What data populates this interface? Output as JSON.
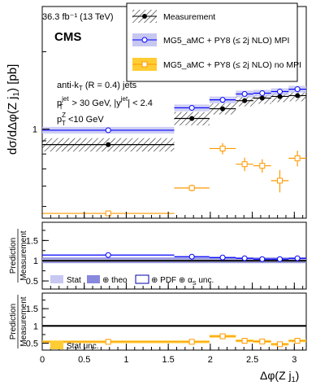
{
  "lumi": "36.3 fb⁻¹ (13 TeV)",
  "experiment": "CMS",
  "selection": {
    "line1": "anti-k",
    "line1_sub": "T",
    "line1_rest": " (R = 0.4) jets",
    "line2_p": "p",
    "line2_sup": "jet",
    "line2_sub": "T",
    "line2_mid": " > 30 GeV, |y",
    "line2_sup2": "jet",
    "line2_end": "| < 2.4",
    "line3_p": "p",
    "line3_sup": "Z",
    "line3_sub": "T",
    "line3_end": " <10 GeV"
  },
  "legend_main": [
    {
      "label": "Measurement"
    },
    {
      "label": "MG5_aMC + PY8 (≤ 2j NLO) MPI"
    },
    {
      "label": "MG5_aMC + PY8 (≤ 2j NLO) no MPI"
    }
  ],
  "legend_ratio1": {
    "stat": "Stat",
    "theo": "⊕ theo",
    "pdf": "⊕ PDF ⊕ α",
    "pdf_sub": "S",
    "unc": " unc."
  },
  "legend_ratio2": {
    "stat": "Stat unc."
  },
  "ylabel_top": "dσ/dΔφ(Z j",
  "ylabel_top_sub": "1",
  "ylabel_top_end": ") [pb]",
  "ylabel_ratio_num": "Prediction",
  "ylabel_ratio_den": "Measurement",
  "xlabel": "Δφ(Z j",
  "xlabel_sub": "1",
  "xlabel_end": ")",
  "colors": {
    "measurement": "#000000",
    "mpi": "#0000ff",
    "mpi_band": "#c7c7f2",
    "mpi_theo": "#8888dd",
    "nompi": "#ff9900",
    "nompi_band": "#ffcc33"
  },
  "chart_data": [
    {
      "type": "line",
      "panel": "main",
      "scale": "log",
      "ylim": [
        0.45,
        3.0
      ],
      "yticks": [
        {
          "value": 1,
          "label": "1"
        }
      ],
      "bins": [
        [
          0,
          1.571
        ],
        [
          1.571,
          1.99
        ],
        [
          1.99,
          2.304
        ],
        [
          2.304,
          2.513
        ],
        [
          2.513,
          2.723
        ],
        [
          2.723,
          2.932
        ],
        [
          2.932,
          3.142
        ]
      ],
      "series": [
        {
          "name": "Measurement",
          "values": [
            0.87,
            1.1,
            1.2,
            1.29,
            1.32,
            1.34,
            1.35
          ]
        },
        {
          "name": "MG5_aMC + PY8 (≤ 2j NLO) MPI",
          "values": [
            0.99,
            1.21,
            1.3,
            1.37,
            1.38,
            1.4,
            1.43
          ]
        },
        {
          "name": "MG5_aMC + PY8 (≤ 2j NLO) no MPI",
          "values": [
            0.47,
            0.59,
            0.84,
            0.73,
            0.72,
            0.63,
            0.77
          ]
        }
      ]
    },
    {
      "type": "line",
      "panel": "ratio_mpi",
      "ylim": [
        0.3,
        1.95
      ],
      "yticks": [
        {
          "value": 0.5,
          "label": "0.5"
        },
        {
          "value": 1,
          "label": "1"
        },
        {
          "value": 1.5,
          "label": "1.5"
        }
      ],
      "series": [
        {
          "name": "MG5_aMC + PY8 (≤ 2j NLO) MPI",
          "values": [
            1.14,
            1.1,
            1.08,
            1.06,
            1.04,
            1.04,
            1.06
          ]
        }
      ]
    },
    {
      "type": "line",
      "panel": "ratio_nompi",
      "ylim": [
        0.3,
        1.95
      ],
      "yticks": [
        {
          "value": 0.5,
          "label": "0.5"
        },
        {
          "value": 1,
          "label": "1"
        },
        {
          "value": 1.5,
          "label": "1.5"
        }
      ],
      "series": [
        {
          "name": "MG5_aMC + PY8 (≤ 2j NLO) no MPI",
          "values": [
            0.54,
            0.54,
            0.7,
            0.57,
            0.55,
            0.47,
            0.57
          ]
        }
      ]
    }
  ],
  "xaxis": {
    "xlim": [
      0,
      3.142
    ],
    "ticks": [
      {
        "value": 0,
        "label": "0"
      },
      {
        "value": 0.5,
        "label": "0.5"
      },
      {
        "value": 1,
        "label": "1"
      },
      {
        "value": 1.5,
        "label": "1.5"
      },
      {
        "value": 2,
        "label": "2"
      },
      {
        "value": 2.5,
        "label": "2.5"
      },
      {
        "value": 3,
        "label": "3"
      }
    ]
  }
}
